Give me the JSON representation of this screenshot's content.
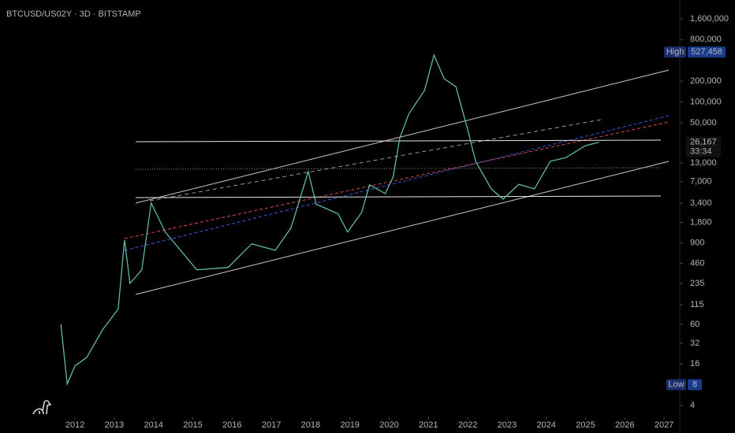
{
  "chart_data": {
    "type": "line",
    "title": "BTCUSD/US02Y · 3D · BITSTAMP",
    "log_scale": true,
    "x": [
      2011.64,
      2011.8,
      2012.0,
      2012.3,
      2012.7,
      2013.1,
      2013.26,
      2013.4,
      2013.7,
      2013.94,
      2014.3,
      2015.1,
      2015.9,
      2016.5,
      2017.1,
      2017.5,
      2017.94,
      2018.14,
      2018.7,
      2018.94,
      2019.3,
      2019.5,
      2019.9,
      2020.1,
      2020.27,
      2020.5,
      2020.9,
      2021.14,
      2021.4,
      2021.7,
      2022.0,
      2022.2,
      2022.6,
      2022.9,
      2023.3,
      2023.7,
      2024.1,
      2024.5,
      2025.0,
      2025.34
    ],
    "series": [
      {
        "color": "#5fb8a8",
        "values": [
          60,
          8.2,
          15,
          20,
          50,
          100,
          1000,
          235,
          370,
          3440,
          1300,
          370,
          400,
          880,
          710,
          1500,
          9800,
          3300,
          2400,
          1300,
          2500,
          6300,
          4700,
          8200,
          30000,
          67000,
          147000,
          478000,
          217000,
          166000,
          39500,
          13800,
          5500,
          3900,
          6400,
          5500,
          13800,
          15600,
          23300,
          26000
        ]
      }
    ],
    "xlim": [
      2010.09,
      2027.4
    ],
    "xticks": [
      2012,
      2013,
      2014,
      2015,
      2016,
      2017,
      2018,
      2019,
      2020,
      2021,
      2022,
      2023,
      2024,
      2025,
      2026,
      2027
    ],
    "ylim": [
      2.7,
      3000000
    ],
    "yticks": [
      {
        "value": 1600000,
        "label": "1,600,000"
      },
      {
        "value": 800000,
        "label": "800,000"
      },
      {
        "value": 200000,
        "label": "200,000"
      },
      {
        "value": 100000,
        "label": "100,000"
      },
      {
        "value": 50000,
        "label": "50,000"
      },
      {
        "value": 13000,
        "label": "13,000"
      },
      {
        "value": 7000,
        "label": "7,000"
      },
      {
        "value": 3400,
        "label": "3,400"
      },
      {
        "value": 1800,
        "label": "1,800"
      },
      900,
      460,
      235,
      115,
      60,
      32,
      16,
      4
    ],
    "high": {
      "label": "High",
      "value": 527458,
      "value_label": "527,458"
    },
    "low": {
      "label": "Low",
      "value": 8
    },
    "last_price": {
      "value": 26167,
      "label": "26,167",
      "countdown": "33:34"
    }
  }
}
